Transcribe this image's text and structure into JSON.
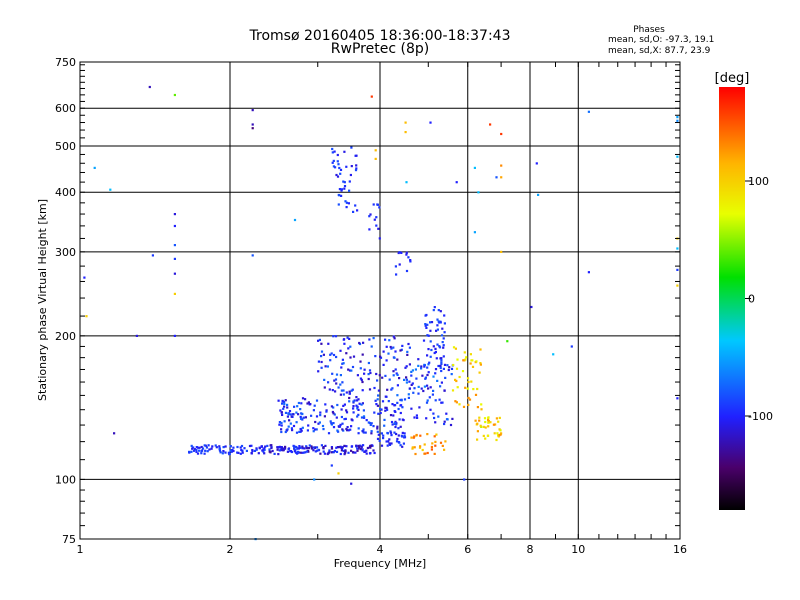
{
  "chart_data": {
    "type": "scatter",
    "title": "Tromsø 20160405 18:36:00-18:37:43",
    "subtitle": "RwPretec (8p)",
    "xlabel": "Frequency [MHz]",
    "ylabel": "Stationary phase Virtual Height [km]",
    "x_scale": "log",
    "y_scale": "log",
    "xlim": [
      1,
      16
    ],
    "ylim": [
      75,
      750
    ],
    "x_ticks": [
      1,
      2,
      4,
      6,
      8,
      10,
      16
    ],
    "y_ticks": [
      75,
      100,
      200,
      300,
      400,
      500,
      600,
      750
    ],
    "grid": true,
    "phase_stats": {
      "heading": "Phases",
      "line_o": "mean, sd,O: -97.3, 19.1",
      "line_x": "mean, sd,X:  87.7, 23.9"
    },
    "colorbar": {
      "label": "[deg]",
      "min": -180,
      "max": 180,
      "ticks": [
        100,
        0,
        -100
      ]
    },
    "clusters": [
      {
        "x": [
          1.65,
          2.4
        ],
        "y": [
          113,
          118
        ],
        "phase": [
          -110,
          -80
        ],
        "count": 90
      },
      {
        "x": [
          2.4,
          3.9
        ],
        "y": [
          113,
          118
        ],
        "phase": [
          -130,
          -85
        ],
        "count": 150
      },
      {
        "x": [
          3.9,
          4.5
        ],
        "y": [
          117,
          126
        ],
        "phase": [
          -110,
          -80
        ],
        "count": 35
      },
      {
        "x": [
          2.5,
          4.5
        ],
        "y": [
          125,
          148
        ],
        "phase": [
          -120,
          -70
        ],
        "count": 220
      },
      {
        "x": [
          3.0,
          4.6
        ],
        "y": [
          148,
          200
        ],
        "phase": [
          -125,
          -70
        ],
        "count": 140
      },
      {
        "x": [
          4.5,
          5.6
        ],
        "y": [
          130,
          180
        ],
        "phase": [
          -120,
          -60
        ],
        "count": 80
      },
      {
        "x": [
          4.9,
          5.4
        ],
        "y": [
          170,
          230
        ],
        "phase": [
          -110,
          -80
        ],
        "count": 60
      },
      {
        "x": [
          5.6,
          6.4
        ],
        "y": [
          140,
          190
        ],
        "phase": [
          70,
          130
        ],
        "count": 45
      },
      {
        "x": [
          6.2,
          7.0
        ],
        "y": [
          120,
          135
        ],
        "phase": [
          60,
          130
        ],
        "count": 40
      },
      {
        "x": [
          4.6,
          5.5
        ],
        "y": [
          112,
          125
        ],
        "phase": [
          90,
          150
        ],
        "count": 30
      },
      {
        "x": [
          3.2,
          3.6
        ],
        "y": [
          360,
          500
        ],
        "phase": [
          -110,
          -80
        ],
        "count": 45
      },
      {
        "x": [
          3.8,
          4.0
        ],
        "y": [
          320,
          380
        ],
        "phase": [
          -110,
          -90
        ],
        "count": 12
      },
      {
        "x": [
          4.3,
          4.7
        ],
        "y": [
          265,
          300
        ],
        "phase": [
          -110,
          -90
        ],
        "count": 12
      }
    ],
    "points": [
      {
        "x": 1.02,
        "y": 265,
        "phase": -100
      },
      {
        "x": 1.03,
        "y": 220,
        "phase": 100
      },
      {
        "x": 1.07,
        "y": 450,
        "phase": -50
      },
      {
        "x": 1.15,
        "y": 405,
        "phase": -40
      },
      {
        "x": 1.17,
        "y": 125,
        "phase": -120
      },
      {
        "x": 1.3,
        "y": 200,
        "phase": -110
      },
      {
        "x": 1.38,
        "y": 665,
        "phase": -120
      },
      {
        "x": 1.4,
        "y": 295,
        "phase": -90
      },
      {
        "x": 1.55,
        "y": 640,
        "phase": 40
      },
      {
        "x": 1.55,
        "y": 360,
        "phase": -110
      },
      {
        "x": 1.55,
        "y": 340,
        "phase": -100
      },
      {
        "x": 1.55,
        "y": 310,
        "phase": -80
      },
      {
        "x": 1.55,
        "y": 290,
        "phase": -90
      },
      {
        "x": 1.55,
        "y": 270,
        "phase": -110
      },
      {
        "x": 1.55,
        "y": 245,
        "phase": 100
      },
      {
        "x": 1.55,
        "y": 200,
        "phase": -100
      },
      {
        "x": 2.22,
        "y": 595,
        "phase": -120
      },
      {
        "x": 2.22,
        "y": 555,
        "phase": -120
      },
      {
        "x": 2.22,
        "y": 545,
        "phase": -140
      },
      {
        "x": 2.22,
        "y": 295,
        "phase": -80
      },
      {
        "x": 2.25,
        "y": 75,
        "phase": -60
      },
      {
        "x": 2.7,
        "y": 350,
        "phase": -50
      },
      {
        "x": 2.95,
        "y": 100,
        "phase": -60
      },
      {
        "x": 3.2,
        "y": 107,
        "phase": -90
      },
      {
        "x": 3.3,
        "y": 103,
        "phase": 100
      },
      {
        "x": 3.5,
        "y": 98,
        "phase": -110
      },
      {
        "x": 3.85,
        "y": 635,
        "phase": 160
      },
      {
        "x": 3.92,
        "y": 490,
        "phase": 110
      },
      {
        "x": 3.92,
        "y": 470,
        "phase": 110
      },
      {
        "x": 4.5,
        "y": 560,
        "phase": 110
      },
      {
        "x": 4.5,
        "y": 535,
        "phase": 110
      },
      {
        "x": 4.52,
        "y": 420,
        "phase": -40
      },
      {
        "x": 5.05,
        "y": 560,
        "phase": -100
      },
      {
        "x": 5.7,
        "y": 420,
        "phase": -100
      },
      {
        "x": 5.9,
        "y": 100,
        "phase": -90
      },
      {
        "x": 6.2,
        "y": 450,
        "phase": -40
      },
      {
        "x": 6.2,
        "y": 330,
        "phase": -50
      },
      {
        "x": 6.3,
        "y": 400,
        "phase": -40
      },
      {
        "x": 6.65,
        "y": 555,
        "phase": 160
      },
      {
        "x": 6.85,
        "y": 430,
        "phase": -80
      },
      {
        "x": 7.0,
        "y": 530,
        "phase": 160
      },
      {
        "x": 7.0,
        "y": 455,
        "phase": 130
      },
      {
        "x": 7.0,
        "y": 430,
        "phase": 120
      },
      {
        "x": 7.0,
        "y": 300,
        "phase": 110
      },
      {
        "x": 7.2,
        "y": 195,
        "phase": 30
      },
      {
        "x": 8.05,
        "y": 230,
        "phase": -110
      },
      {
        "x": 8.25,
        "y": 460,
        "phase": -100
      },
      {
        "x": 8.3,
        "y": 395,
        "phase": -50
      },
      {
        "x": 8.9,
        "y": 183,
        "phase": -40
      },
      {
        "x": 9.7,
        "y": 190,
        "phase": -90
      },
      {
        "x": 10.5,
        "y": 590,
        "phase": -70
      },
      {
        "x": 10.5,
        "y": 272,
        "phase": -100
      },
      {
        "x": 15.8,
        "y": 575,
        "phase": -50
      },
      {
        "x": 15.8,
        "y": 565,
        "phase": -60
      },
      {
        "x": 15.8,
        "y": 475,
        "phase": -40
      },
      {
        "x": 15.8,
        "y": 320,
        "phase": 100
      },
      {
        "x": 15.8,
        "y": 305,
        "phase": -40
      },
      {
        "x": 15.8,
        "y": 275,
        "phase": -90
      },
      {
        "x": 15.8,
        "y": 255,
        "phase": 100
      },
      {
        "x": 15.8,
        "y": 148,
        "phase": -100
      }
    ]
  }
}
